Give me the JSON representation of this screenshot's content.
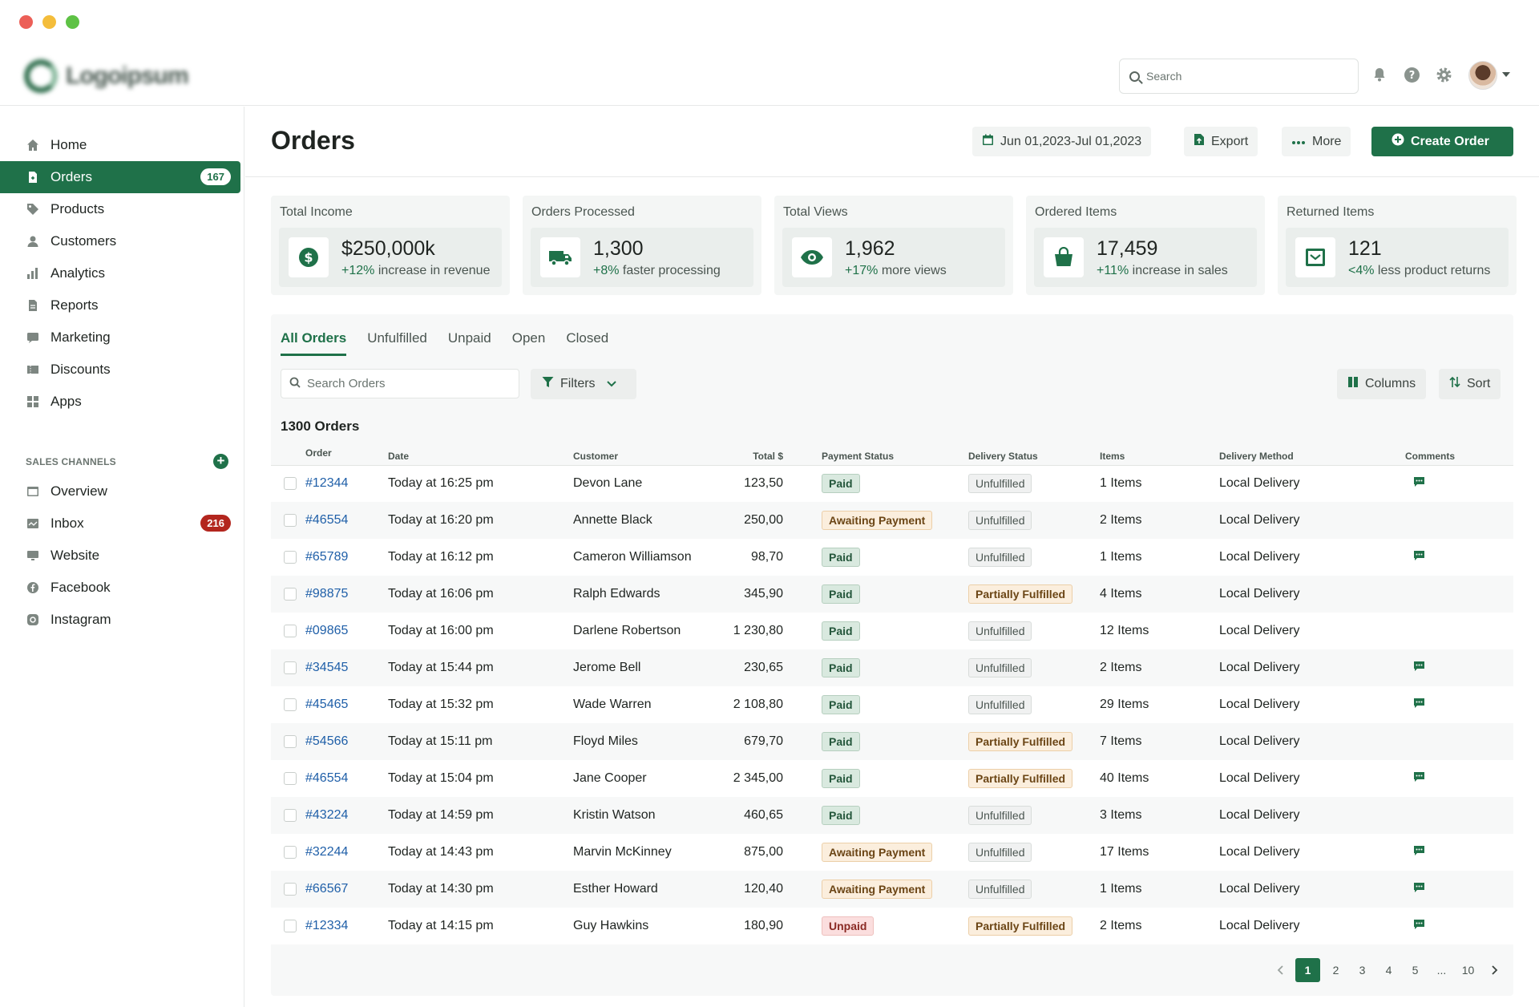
{
  "colors": {
    "accent": "#1f7149",
    "link": "#1f5fa8",
    "danger": "#b3261e"
  },
  "top": {
    "logo_text": "Logoipsum",
    "search_placeholder": "Search",
    "icons": [
      "bell-icon",
      "help-icon",
      "gear-icon"
    ]
  },
  "sidebar": {
    "items": [
      {
        "label": "Home",
        "icon": "home-icon"
      },
      {
        "label": "Orders",
        "icon": "orders-icon",
        "badge": "167",
        "active": true
      },
      {
        "label": "Products",
        "icon": "tag-icon"
      },
      {
        "label": "Customers",
        "icon": "user-icon"
      },
      {
        "label": "Analytics",
        "icon": "bar-chart-icon"
      },
      {
        "label": "Reports",
        "icon": "report-icon"
      },
      {
        "label": "Marketing",
        "icon": "megaphone-icon"
      },
      {
        "label": "Discounts",
        "icon": "discount-icon"
      },
      {
        "label": "Apps",
        "icon": "apps-icon"
      }
    ],
    "channels_title": "SALES CHANNELS",
    "channels": [
      {
        "label": "Overview",
        "icon": "overview-icon"
      },
      {
        "label": "Inbox",
        "icon": "inbox-icon",
        "badge": "216"
      },
      {
        "label": "Website",
        "icon": "monitor-icon"
      },
      {
        "label": "Facebook",
        "icon": "facebook-icon"
      },
      {
        "label": "Instagram",
        "icon": "instagram-icon"
      }
    ]
  },
  "header": {
    "title": "Orders",
    "date_range": "Jun 01,2023-Jul 01,2023",
    "export_label": "Export",
    "more_label": "More",
    "create_label": "Create Order"
  },
  "stats": [
    {
      "label": "Total Income",
      "value": "$250,000k",
      "delta": "+12%",
      "note": " increase in revenue",
      "icon": "dollar-icon"
    },
    {
      "label": "Orders Processed",
      "value": "1,300",
      "delta": "+8%",
      "note": " faster processing",
      "icon": "truck-icon"
    },
    {
      "label": "Total Views",
      "value": "1,962",
      "delta": "+17%",
      "note": " more views",
      "icon": "eye-icon"
    },
    {
      "label": "Ordered Items",
      "value": "17,459",
      "delta": "+11%",
      "note": " increase in sales",
      "icon": "bag-icon"
    },
    {
      "label": "Returned Items",
      "value": "121",
      "delta": "<4%",
      "note": " less product returns",
      "icon": "return-box-icon"
    }
  ],
  "tabs": [
    "All Orders",
    "Unfulfilled",
    "Unpaid",
    "Open",
    "Closed"
  ],
  "toolbar": {
    "search_placeholder": "Search Orders",
    "filters_label": "Filters",
    "columns_label": "Columns",
    "sort_label": "Sort"
  },
  "orders_count_label": "1300 Orders",
  "table": {
    "columns": [
      "Order",
      "Date",
      "Customer",
      "Total $",
      "Payment Status",
      "Delivery Status",
      "Items",
      "Delivery Method",
      "Comments"
    ],
    "rows": [
      {
        "order": "#12344",
        "date": "Today at 16:25 pm",
        "customer": "Devon Lane",
        "total": "123,50",
        "payment": "Paid",
        "delivery": "Unfulfilled",
        "items": "1 Items",
        "method": "Local Delivery",
        "comment": true
      },
      {
        "order": "#46554",
        "date": "Today at 16:20 pm",
        "customer": "Annette Black",
        "total": "250,00",
        "payment": "Awaiting Payment",
        "delivery": "Unfulfilled",
        "items": "2 Items",
        "method": "Local Delivery",
        "comment": false
      },
      {
        "order": "#65789",
        "date": "Today at 16:12 pm",
        "customer": "Cameron Williamson",
        "total": "98,70",
        "payment": "Paid",
        "delivery": "Unfulfilled",
        "items": "1 Items",
        "method": "Local Delivery",
        "comment": true
      },
      {
        "order": "#98875",
        "date": "Today at 16:06 pm",
        "customer": "Ralph Edwards",
        "total": "345,90",
        "payment": "Paid",
        "delivery": "Partially Fulfilled",
        "items": "4 Items",
        "method": "Local Delivery",
        "comment": false
      },
      {
        "order": "#09865",
        "date": "Today at 16:00 pm",
        "customer": "Darlene Robertson",
        "total": "1 230,80",
        "payment": "Paid",
        "delivery": "Unfulfilled",
        "items": "12 Items",
        "method": "Local Delivery",
        "comment": false
      },
      {
        "order": "#34545",
        "date": "Today at 15:44 pm",
        "customer": "Jerome Bell",
        "total": "230,65",
        "payment": "Paid",
        "delivery": "Unfulfilled",
        "items": "2 Items",
        "method": "Local Delivery",
        "comment": true
      },
      {
        "order": "#45465",
        "date": "Today at 15:32 pm",
        "customer": "Wade Warren",
        "total": "2 108,80",
        "payment": "Paid",
        "delivery": "Unfulfilled",
        "items": "29 Items",
        "method": "Local Delivery",
        "comment": true
      },
      {
        "order": "#54566",
        "date": "Today at 15:11 pm",
        "customer": "Floyd Miles",
        "total": "679,70",
        "payment": "Paid",
        "delivery": "Partially Fulfilled",
        "items": "7 Items",
        "method": "Local Delivery",
        "comment": false
      },
      {
        "order": "#46554",
        "date": "Today at 15:04 pm",
        "customer": "Jane Cooper",
        "total": "2 345,00",
        "payment": "Paid",
        "delivery": "Partially Fulfilled",
        "items": "40 Items",
        "method": "Local Delivery",
        "comment": true
      },
      {
        "order": "#43224",
        "date": "Today at 14:59 pm",
        "customer": "Kristin Watson",
        "total": "460,65",
        "payment": "Paid",
        "delivery": "Unfulfilled",
        "items": "3 Items",
        "method": "Local Delivery",
        "comment": false
      },
      {
        "order": "#32244",
        "date": "Today at 14:43 pm",
        "customer": "Marvin McKinney",
        "total": "875,00",
        "payment": "Awaiting Payment",
        "delivery": "Unfulfilled",
        "items": "17 Items",
        "method": "Local Delivery",
        "comment": true
      },
      {
        "order": "#66567",
        "date": "Today at 14:30 pm",
        "customer": "Esther Howard",
        "total": "120,40",
        "payment": "Awaiting Payment",
        "delivery": "Unfulfilled",
        "items": "1 Items",
        "method": "Local Delivery",
        "comment": true
      },
      {
        "order": "#12334",
        "date": "Today at 14:15 pm",
        "customer": "Guy Hawkins",
        "total": "180,90",
        "payment": "Unpaid",
        "delivery": "Partially Fulfilled",
        "items": "2 Items",
        "method": "Local Delivery",
        "comment": true
      }
    ]
  },
  "pagination": {
    "pages": [
      "1",
      "2",
      "3",
      "4",
      "5",
      "...",
      "10"
    ],
    "current": "1"
  }
}
